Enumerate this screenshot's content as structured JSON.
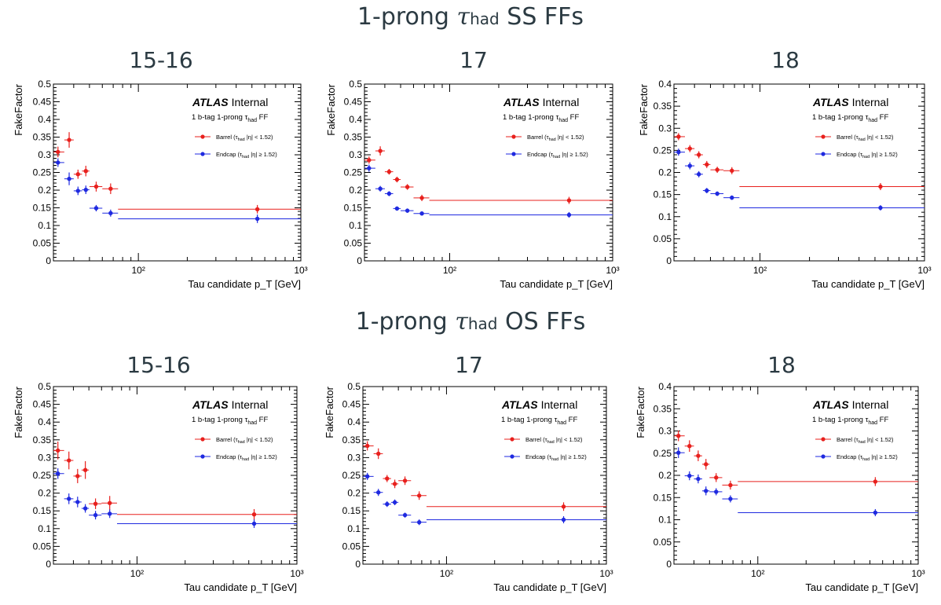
{
  "rows": [
    {
      "title_prefix": "1-prong ",
      "title_tau": "τ",
      "title_sub": "had",
      "title_suffix": " SS FFs"
    },
    {
      "title_prefix": "1-prong ",
      "title_tau": "τ",
      "title_sub": "had",
      "title_suffix": " OS FFs"
    }
  ],
  "legend": {
    "atlas": "ATLAS",
    "internal": "Internal",
    "selection": "1 b-tag 1-prong τ",
    "selection_sub": "had",
    "selection_suffix": " FF",
    "barrel": "Barrel (τ",
    "barrel_suffix": " |η| < 1.52)",
    "endcap": "Endcap (τ",
    "endcap_suffix": " |η| ≥ 1.52)",
    "had": "had"
  },
  "colors": {
    "barrel": "#e8201d",
    "endcap": "#1f2ae0",
    "axis": "#000000",
    "title": "#2b3a42"
  },
  "chart_data": [
    {
      "type": "scatter",
      "title": "15-16",
      "row": 0,
      "col": 0,
      "xlabel": "Tau candidate p_T [GeV]",
      "ylabel": "FakeFactor",
      "xscale": "log",
      "xlim": [
        30,
        1000
      ],
      "ylim": [
        0,
        0.5
      ],
      "yticks": [
        "0",
        "0.05",
        "0.1",
        "0.15",
        "0.2",
        "0.25",
        "0.3",
        "0.35",
        "0.4",
        "0.45",
        "0.5"
      ],
      "xticks": [
        "10²",
        "10³"
      ],
      "series": [
        {
          "name": "Barrel",
          "color": "#e8201d",
          "points": [
            {
              "x": 32,
              "xlo": 30,
              "xhi": 35,
              "y": 0.308,
              "err": 0.015
            },
            {
              "x": 37.5,
              "xlo": 35,
              "xhi": 40,
              "y": 0.342,
              "err": 0.022
            },
            {
              "x": 42.5,
              "xlo": 40,
              "xhi": 45,
              "y": 0.245,
              "err": 0.013
            },
            {
              "x": 47.5,
              "xlo": 45,
              "xhi": 50,
              "y": 0.254,
              "err": 0.015
            },
            {
              "x": 55,
              "xlo": 50,
              "xhi": 60,
              "y": 0.21,
              "err": 0.014
            },
            {
              "x": 67.5,
              "xlo": 60,
              "xhi": 75,
              "y": 0.204,
              "err": 0.015
            },
            {
              "x": 540,
              "xlo": 75,
              "xhi": 1000,
              "y": 0.146,
              "err": 0.012
            }
          ]
        },
        {
          "name": "Endcap",
          "color": "#1f2ae0",
          "points": [
            {
              "x": 32,
              "xlo": 30,
              "xhi": 35,
              "y": 0.278,
              "err": 0.012
            },
            {
              "x": 37.5,
              "xlo": 35,
              "xhi": 40,
              "y": 0.232,
              "err": 0.018
            },
            {
              "x": 42.5,
              "xlo": 40,
              "xhi": 45,
              "y": 0.198,
              "err": 0.012
            },
            {
              "x": 47.5,
              "xlo": 45,
              "xhi": 50,
              "y": 0.201,
              "err": 0.012
            },
            {
              "x": 55,
              "xlo": 50,
              "xhi": 60,
              "y": 0.149,
              "err": 0.009
            },
            {
              "x": 67.5,
              "xlo": 60,
              "xhi": 75,
              "y": 0.135,
              "err": 0.01
            },
            {
              "x": 540,
              "xlo": 75,
              "xhi": 1000,
              "y": 0.119,
              "err": 0.012
            }
          ]
        }
      ]
    },
    {
      "type": "scatter",
      "title": "17",
      "row": 0,
      "col": 1,
      "xlabel": "Tau candidate p_T [GeV]",
      "ylabel": "FakeFactor",
      "xscale": "log",
      "xlim": [
        30,
        1000
      ],
      "ylim": [
        0,
        0.5
      ],
      "yticks": [
        "0",
        "0.05",
        "0.1",
        "0.15",
        "0.2",
        "0.25",
        "0.3",
        "0.35",
        "0.4",
        "0.45",
        "0.5"
      ],
      "xticks": [
        "10²",
        "10³"
      ],
      "series": [
        {
          "name": "Barrel",
          "color": "#e8201d",
          "points": [
            {
              "x": 32,
              "xlo": 30,
              "xhi": 35,
              "y": 0.285,
              "err": 0.01
            },
            {
              "x": 37.5,
              "xlo": 35,
              "xhi": 40,
              "y": 0.311,
              "err": 0.013
            },
            {
              "x": 42.5,
              "xlo": 40,
              "xhi": 45,
              "y": 0.252,
              "err": 0.008
            },
            {
              "x": 47.5,
              "xlo": 45,
              "xhi": 50,
              "y": 0.23,
              "err": 0.008
            },
            {
              "x": 55,
              "xlo": 50,
              "xhi": 60,
              "y": 0.209,
              "err": 0.008
            },
            {
              "x": 67.5,
              "xlo": 60,
              "xhi": 75,
              "y": 0.178,
              "err": 0.009
            },
            {
              "x": 540,
              "xlo": 75,
              "xhi": 1000,
              "y": 0.171,
              "err": 0.01
            }
          ]
        },
        {
          "name": "Endcap",
          "color": "#1f2ae0",
          "points": [
            {
              "x": 32,
              "xlo": 30,
              "xhi": 35,
              "y": 0.262,
              "err": 0.01
            },
            {
              "x": 37.5,
              "xlo": 35,
              "xhi": 40,
              "y": 0.204,
              "err": 0.008
            },
            {
              "x": 42.5,
              "xlo": 40,
              "xhi": 45,
              "y": 0.19,
              "err": 0.007
            },
            {
              "x": 47.5,
              "xlo": 45,
              "xhi": 50,
              "y": 0.148,
              "err": 0.006
            },
            {
              "x": 55,
              "xlo": 50,
              "xhi": 60,
              "y": 0.142,
              "err": 0.006
            },
            {
              "x": 67.5,
              "xlo": 60,
              "xhi": 75,
              "y": 0.134,
              "err": 0.006
            },
            {
              "x": 540,
              "xlo": 75,
              "xhi": 1000,
              "y": 0.13,
              "err": 0.008
            }
          ]
        }
      ]
    },
    {
      "type": "scatter",
      "title": "18",
      "row": 0,
      "col": 2,
      "xlabel": "Tau candidate p_T [GeV]",
      "ylabel": "FakeFactor",
      "xscale": "log",
      "xlim": [
        30,
        1000
      ],
      "ylim": [
        0,
        0.4
      ],
      "yticks": [
        "0",
        "0.05",
        "0.1",
        "0.15",
        "0.2",
        "0.25",
        "0.3",
        "0.35",
        "0.4"
      ],
      "xticks": [
        "10²",
        "10³"
      ],
      "series": [
        {
          "name": "Barrel",
          "color": "#e8201d",
          "points": [
            {
              "x": 32,
              "xlo": 30,
              "xhi": 35,
              "y": 0.281,
              "err": 0.008
            },
            {
              "x": 37.5,
              "xlo": 35,
              "xhi": 40,
              "y": 0.254,
              "err": 0.008
            },
            {
              "x": 42.5,
              "xlo": 40,
              "xhi": 45,
              "y": 0.24,
              "err": 0.008
            },
            {
              "x": 47.5,
              "xlo": 45,
              "xhi": 50,
              "y": 0.218,
              "err": 0.008
            },
            {
              "x": 55,
              "xlo": 50,
              "xhi": 60,
              "y": 0.206,
              "err": 0.007
            },
            {
              "x": 67.5,
              "xlo": 60,
              "xhi": 75,
              "y": 0.204,
              "err": 0.008
            },
            {
              "x": 540,
              "xlo": 75,
              "xhi": 1000,
              "y": 0.168,
              "err": 0.008
            }
          ]
        },
        {
          "name": "Endcap",
          "color": "#1f2ae0",
          "points": [
            {
              "x": 32,
              "xlo": 30,
              "xhi": 35,
              "y": 0.246,
              "err": 0.008
            },
            {
              "x": 37.5,
              "xlo": 35,
              "xhi": 40,
              "y": 0.215,
              "err": 0.008
            },
            {
              "x": 42.5,
              "xlo": 40,
              "xhi": 45,
              "y": 0.196,
              "err": 0.007
            },
            {
              "x": 47.5,
              "xlo": 45,
              "xhi": 50,
              "y": 0.159,
              "err": 0.006
            },
            {
              "x": 55,
              "xlo": 50,
              "xhi": 60,
              "y": 0.152,
              "err": 0.005
            },
            {
              "x": 67.5,
              "xlo": 60,
              "xhi": 75,
              "y": 0.143,
              "err": 0.005
            },
            {
              "x": 540,
              "xlo": 75,
              "xhi": 1000,
              "y": 0.12,
              "err": 0.006
            }
          ]
        }
      ]
    },
    {
      "type": "scatter",
      "title": "15-16",
      "row": 1,
      "col": 0,
      "xlabel": "Tau candidate p_T [GeV]",
      "ylabel": "FakeFactor",
      "xscale": "log",
      "xlim": [
        30,
        1000
      ],
      "ylim": [
        0,
        0.5
      ],
      "yticks": [
        "0",
        "0.05",
        "0.1",
        "0.15",
        "0.2",
        "0.25",
        "0.3",
        "0.35",
        "0.4",
        "0.45",
        "0.5"
      ],
      "xticks": [
        "10²",
        "10³"
      ],
      "series": [
        {
          "name": "Barrel",
          "color": "#e8201d",
          "points": [
            {
              "x": 32,
              "xlo": 30,
              "xhi": 35,
              "y": 0.32,
              "err": 0.025
            },
            {
              "x": 37.5,
              "xlo": 35,
              "xhi": 40,
              "y": 0.292,
              "err": 0.025
            },
            {
              "x": 42.5,
              "xlo": 40,
              "xhi": 45,
              "y": 0.248,
              "err": 0.02
            },
            {
              "x": 47.5,
              "xlo": 45,
              "xhi": 50,
              "y": 0.265,
              "err": 0.025
            },
            {
              "x": 55,
              "xlo": 50,
              "xhi": 60,
              "y": 0.17,
              "err": 0.015
            },
            {
              "x": 67.5,
              "xlo": 60,
              "xhi": 75,
              "y": 0.172,
              "err": 0.02
            },
            {
              "x": 540,
              "xlo": 75,
              "xhi": 1000,
              "y": 0.14,
              "err": 0.015
            }
          ]
        },
        {
          "name": "Endcap",
          "color": "#1f2ae0",
          "points": [
            {
              "x": 32,
              "xlo": 30,
              "xhi": 35,
              "y": 0.255,
              "err": 0.015
            },
            {
              "x": 37.5,
              "xlo": 35,
              "xhi": 40,
              "y": 0.184,
              "err": 0.015
            },
            {
              "x": 42.5,
              "xlo": 40,
              "xhi": 45,
              "y": 0.175,
              "err": 0.015
            },
            {
              "x": 47.5,
              "xlo": 45,
              "xhi": 50,
              "y": 0.157,
              "err": 0.012
            },
            {
              "x": 55,
              "xlo": 50,
              "xhi": 60,
              "y": 0.138,
              "err": 0.012
            },
            {
              "x": 67.5,
              "xlo": 60,
              "xhi": 75,
              "y": 0.142,
              "err": 0.012
            },
            {
              "x": 540,
              "xlo": 75,
              "xhi": 1000,
              "y": 0.114,
              "err": 0.012
            }
          ]
        }
      ]
    },
    {
      "type": "scatter",
      "title": "17",
      "row": 1,
      "col": 1,
      "xlabel": "Tau candidate p_T [GeV]",
      "ylabel": "FakeFactor",
      "xscale": "log",
      "xlim": [
        30,
        1000
      ],
      "ylim": [
        0,
        0.5
      ],
      "yticks": [
        "0",
        "0.05",
        "0.1",
        "0.15",
        "0.2",
        "0.25",
        "0.3",
        "0.35",
        "0.4",
        "0.45",
        "0.5"
      ],
      "xticks": [
        "10²",
        "10³"
      ],
      "series": [
        {
          "name": "Barrel",
          "color": "#e8201d",
          "points": [
            {
              "x": 32,
              "xlo": 30,
              "xhi": 35,
              "y": 0.333,
              "err": 0.013
            },
            {
              "x": 37.5,
              "xlo": 35,
              "xhi": 40,
              "y": 0.311,
              "err": 0.015
            },
            {
              "x": 42.5,
              "xlo": 40,
              "xhi": 45,
              "y": 0.241,
              "err": 0.01
            },
            {
              "x": 47.5,
              "xlo": 45,
              "xhi": 50,
              "y": 0.226,
              "err": 0.012
            },
            {
              "x": 55,
              "xlo": 50,
              "xhi": 60,
              "y": 0.235,
              "err": 0.012
            },
            {
              "x": 67.5,
              "xlo": 60,
              "xhi": 75,
              "y": 0.193,
              "err": 0.012
            },
            {
              "x": 540,
              "xlo": 75,
              "xhi": 1000,
              "y": 0.162,
              "err": 0.012
            }
          ]
        },
        {
          "name": "Endcap",
          "color": "#1f2ae0",
          "points": [
            {
              "x": 32,
              "xlo": 30,
              "xhi": 35,
              "y": 0.247,
              "err": 0.01
            },
            {
              "x": 37.5,
              "xlo": 35,
              "xhi": 40,
              "y": 0.202,
              "err": 0.01
            },
            {
              "x": 42.5,
              "xlo": 40,
              "xhi": 45,
              "y": 0.169,
              "err": 0.008
            },
            {
              "x": 47.5,
              "xlo": 45,
              "xhi": 50,
              "y": 0.174,
              "err": 0.008
            },
            {
              "x": 55,
              "xlo": 50,
              "xhi": 60,
              "y": 0.138,
              "err": 0.007
            },
            {
              "x": 67.5,
              "xlo": 60,
              "xhi": 75,
              "y": 0.118,
              "err": 0.008
            },
            {
              "x": 540,
              "xlo": 75,
              "xhi": 1000,
              "y": 0.125,
              "err": 0.01
            }
          ]
        }
      ]
    },
    {
      "type": "scatter",
      "title": "18",
      "row": 1,
      "col": 2,
      "xlabel": "Tau candidate p_T [GeV]",
      "ylabel": "FakeFactor",
      "xscale": "log",
      "xlim": [
        30,
        1000
      ],
      "ylim": [
        0,
        0.4
      ],
      "yticks": [
        "0",
        "0.05",
        "0.1",
        "0.15",
        "0.2",
        "0.25",
        "0.3",
        "0.35",
        "0.4"
      ],
      "xticks": [
        "10²",
        "10³"
      ],
      "series": [
        {
          "name": "Barrel",
          "color": "#e8201d",
          "points": [
            {
              "x": 32,
              "xlo": 30,
              "xhi": 35,
              "y": 0.289,
              "err": 0.012
            },
            {
              "x": 37.5,
              "xlo": 35,
              "xhi": 40,
              "y": 0.266,
              "err": 0.013
            },
            {
              "x": 42.5,
              "xlo": 40,
              "xhi": 45,
              "y": 0.244,
              "err": 0.012
            },
            {
              "x": 47.5,
              "xlo": 45,
              "xhi": 50,
              "y": 0.225,
              "err": 0.012
            },
            {
              "x": 55,
              "xlo": 50,
              "xhi": 60,
              "y": 0.195,
              "err": 0.01
            },
            {
              "x": 67.5,
              "xlo": 60,
              "xhi": 75,
              "y": 0.178,
              "err": 0.01
            },
            {
              "x": 540,
              "xlo": 75,
              "xhi": 1000,
              "y": 0.186,
              "err": 0.01
            }
          ]
        },
        {
          "name": "Endcap",
          "color": "#1f2ae0",
          "points": [
            {
              "x": 32,
              "xlo": 30,
              "xhi": 35,
              "y": 0.251,
              "err": 0.012
            },
            {
              "x": 37.5,
              "xlo": 35,
              "xhi": 40,
              "y": 0.199,
              "err": 0.01
            },
            {
              "x": 42.5,
              "xlo": 40,
              "xhi": 45,
              "y": 0.192,
              "err": 0.01
            },
            {
              "x": 47.5,
              "xlo": 45,
              "xhi": 50,
              "y": 0.165,
              "err": 0.01
            },
            {
              "x": 55,
              "xlo": 50,
              "xhi": 60,
              "y": 0.163,
              "err": 0.008
            },
            {
              "x": 67.5,
              "xlo": 60,
              "xhi": 75,
              "y": 0.147,
              "err": 0.008
            },
            {
              "x": 540,
              "xlo": 75,
              "xhi": 1000,
              "y": 0.116,
              "err": 0.008
            }
          ]
        }
      ]
    }
  ]
}
